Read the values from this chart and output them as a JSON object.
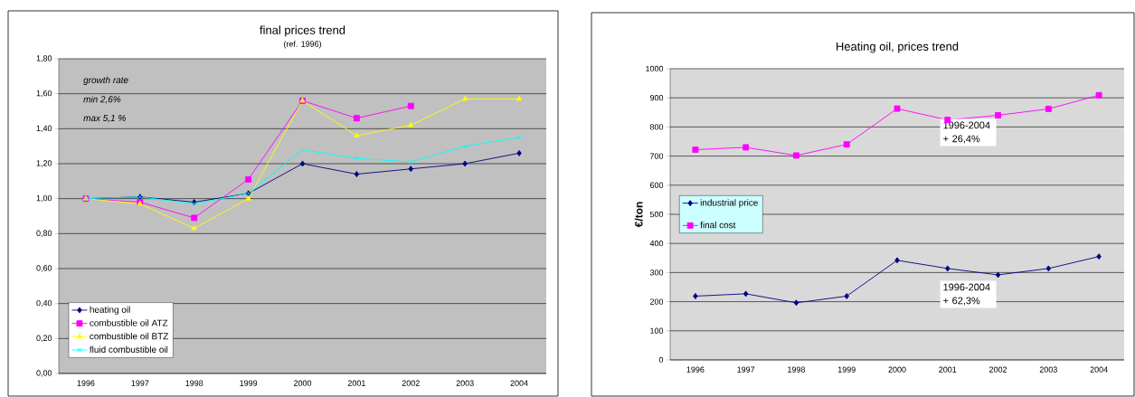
{
  "chart_data": [
    {
      "type": "line",
      "title": "final prices trend",
      "subtitle": "(ref. 1996)",
      "categories": [
        "1996",
        "1997",
        "1998",
        "1999",
        "2000",
        "2001",
        "2002",
        "2003",
        "2004"
      ],
      "series": [
        {
          "name": "heating oil",
          "color": "#000080",
          "marker": "diamond",
          "values": [
            1.0,
            1.01,
            0.98,
            1.03,
            1.2,
            1.14,
            1.17,
            1.2,
            1.26
          ]
        },
        {
          "name": "combustible oil ATZ",
          "color": "#ff00ff",
          "marker": "square",
          "values": [
            1.0,
            0.98,
            0.89,
            1.11,
            1.56,
            1.46,
            1.53,
            null,
            null
          ]
        },
        {
          "name": "combustible oil BTZ",
          "color": "#ffff00",
          "marker": "triangle",
          "values": [
            1.0,
            0.97,
            0.83,
            1.0,
            1.56,
            1.36,
            1.42,
            1.57,
            1.57
          ]
        },
        {
          "name": "fluid combustible oil",
          "color": "#00ffff",
          "marker": "cross",
          "values": [
            1.0,
            1.01,
            0.97,
            1.03,
            1.28,
            1.23,
            1.21,
            1.3,
            1.35
          ]
        }
      ],
      "ylim": [
        0,
        1.8
      ],
      "yticks": [
        {
          "value": 0,
          "label": "0,00"
        },
        {
          "value": 0.2,
          "label": "0,20"
        },
        {
          "value": 0.4,
          "label": "0,40"
        },
        {
          "value": 0.6,
          "label": "0,60"
        },
        {
          "value": 0.8,
          "label": "0,80"
        },
        {
          "value": 1.0,
          "label": "1,00"
        },
        {
          "value": 1.2,
          "label": "1,20"
        },
        {
          "value": 1.4,
          "label": "1,40"
        },
        {
          "value": 1.6,
          "label": "1,60"
        },
        {
          "value": 1.8,
          "label": "1,80"
        }
      ],
      "grid": "y",
      "legend": "bottom left",
      "annotations": [
        "*growth rate*",
        "*min 2,6%*",
        "*max 5,1 %*"
      ]
    },
    {
      "type": "line",
      "title": "Heating oil, prices trend",
      "ylabel": "€/ton",
      "categories": [
        "1996",
        "1997",
        "1998",
        "1999",
        "2000",
        "2001",
        "2002",
        "2003",
        "2004"
      ],
      "series": [
        {
          "name": "industrial price",
          "color": "#000080",
          "marker": "diamond",
          "values": [
            219,
            227,
            196,
            219,
            342,
            314,
            292,
            314,
            355
          ]
        },
        {
          "name": "final cost",
          "color": "#ff00ff",
          "marker": "square",
          "values": [
            722,
            730,
            702,
            740,
            863,
            824,
            840,
            862,
            909
          ]
        }
      ],
      "ylim": [
        0,
        1000
      ],
      "yticks": [
        0,
        100,
        200,
        300,
        400,
        500,
        600,
        700,
        800,
        900,
        1000
      ],
      "grid": "y",
      "legend": "left",
      "annotations": [
        "1996-2004 + 26,4%",
        "1996-2004 + 62,3%"
      ]
    }
  ]
}
